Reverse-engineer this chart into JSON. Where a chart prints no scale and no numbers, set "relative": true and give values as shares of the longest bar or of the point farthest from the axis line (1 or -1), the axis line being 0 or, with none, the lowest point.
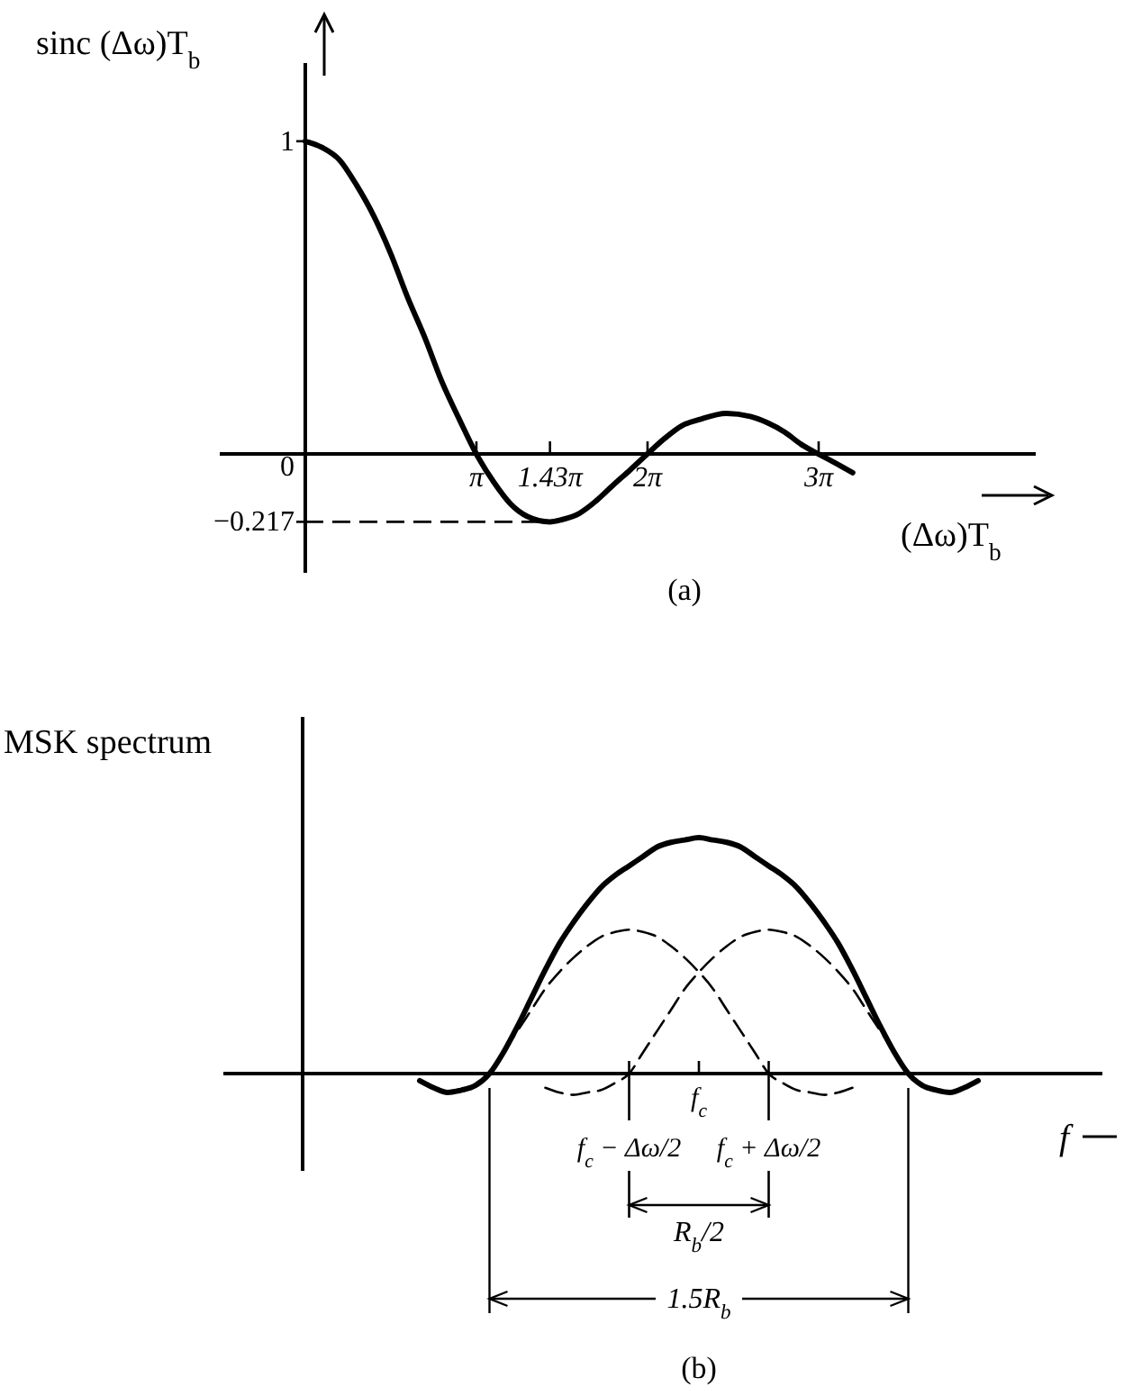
{
  "chart_data": [
    {
      "type": "line",
      "ylabel": "sinc (Δω)T$_{b}$",
      "xlabel": "(Δω)T$_{b}$",
      "annotations": [
        "(a)"
      ],
      "xlim": [
        -1.57,
        13.41
      ],
      "ylim": [
        -0.38,
        1.25
      ],
      "xticks": [
        {
          "value": 3.1416,
          "label": "π"
        },
        {
          "value": 4.4925,
          "label": "1.43π"
        },
        {
          "value": 6.2832,
          "label": "2π"
        },
        {
          "value": 9.4248,
          "label": "3π"
        }
      ],
      "yticks": [
        1,
        0,
        -0.217
      ],
      "marker": "none",
      "ref_lines": [
        {
          "axis": "y",
          "value": -0.217,
          "line_style": "dashed",
          "color": "#000000"
        }
      ],
      "series": [
        {
          "color": "#000000",
          "line_style": "solid",
          "x": [
            0,
            0.31,
            0.63,
            0.94,
            1.26,
            1.57,
            1.88,
            2.2,
            2.51,
            2.83,
            3.14,
            3.46,
            3.77,
            4.08,
            4.49,
            4.71,
            5.03,
            5.34,
            5.65,
            5.97,
            6.28,
            6.6,
            6.91,
            7.23,
            7.73,
            8.17,
            8.48,
            8.8,
            9.11,
            9.42,
            9.74,
            10.05
          ],
          "values": [
            1,
            0.98,
            0.94,
            0.86,
            0.76,
            0.64,
            0.5,
            0.37,
            0.23,
            0.11,
            0,
            -0.09,
            -0.16,
            -0.2,
            -0.217,
            -0.21,
            -0.19,
            -0.15,
            -0.1,
            -0.05,
            0,
            0.05,
            0.09,
            0.11,
            0.13,
            0.12,
            0.1,
            0.07,
            0.03,
            0,
            -0.03,
            -0.06
          ]
        }
      ]
    },
    {
      "type": "line",
      "ylabel": "MSK spectrum",
      "xlabel": "f",
      "relative": true,
      "annotations": [
        "f$_{c}$ − Δω/2",
        "f$_{c}$",
        "f$_{c}$ + Δω/2",
        "R$_{b}$/2",
        "1.5R$_{b}$",
        "(b)"
      ],
      "categories": [
        null,
        null,
        null,
        null,
        null,
        null,
        null,
        null,
        null,
        null,
        null,
        null,
        null,
        null,
        null,
        null,
        null,
        null,
        null,
        null,
        null,
        null,
        null,
        null,
        null,
        null,
        null,
        null,
        null,
        null,
        null,
        null,
        null,
        null,
        null,
        null,
        null,
        null,
        null,
        null,
        null
      ],
      "marker": "none",
      "series": [
        {
          "color": "#000000",
          "line_style": "solid",
          "values": [
            -0.03,
            -0.06,
            -0.08,
            -0.07,
            -0.05,
            0,
            0.09,
            0.2,
            0.32,
            0.44,
            0.55,
            0.64,
            0.72,
            0.79,
            0.84,
            0.88,
            0.92,
            0.96,
            0.98,
            0.99,
            1,
            0.99,
            0.98,
            0.96,
            0.92,
            0.88,
            0.84,
            0.79,
            0.72,
            0.64,
            0.55,
            0.44,
            0.32,
            0.2,
            0.09,
            0,
            -0.05,
            -0.07,
            -0.08,
            -0.06,
            -0.03
          ]
        },
        {
          "color": "#000000",
          "line_style": "dashed",
          "values": [
            null,
            null,
            null,
            null,
            null,
            0,
            0.09,
            0.18,
            0.27,
            0.36,
            0.43,
            0.49,
            0.54,
            0.58,
            0.6,
            0.61,
            0.6,
            0.58,
            0.54,
            0.49,
            0.43,
            0.36,
            0.27,
            0.18,
            0.09,
            0,
            -0.04,
            -0.07,
            -0.08,
            -0.09,
            -0.08,
            -0.06,
            null,
            null,
            null,
            null,
            null,
            null,
            null,
            null,
            null
          ]
        },
        {
          "color": "#000000",
          "line_style": "dashed",
          "values": [
            null,
            null,
            null,
            null,
            null,
            null,
            null,
            null,
            null,
            -0.06,
            -0.08,
            -0.09,
            -0.08,
            -0.07,
            -0.04,
            0,
            0.09,
            0.18,
            0.27,
            0.36,
            0.43,
            0.49,
            0.54,
            0.58,
            0.6,
            0.61,
            0.6,
            0.58,
            0.54,
            0.49,
            0.43,
            0.36,
            0.27,
            0.18,
            0.09,
            0,
            null,
            null,
            null,
            null,
            null
          ]
        }
      ]
    }
  ]
}
